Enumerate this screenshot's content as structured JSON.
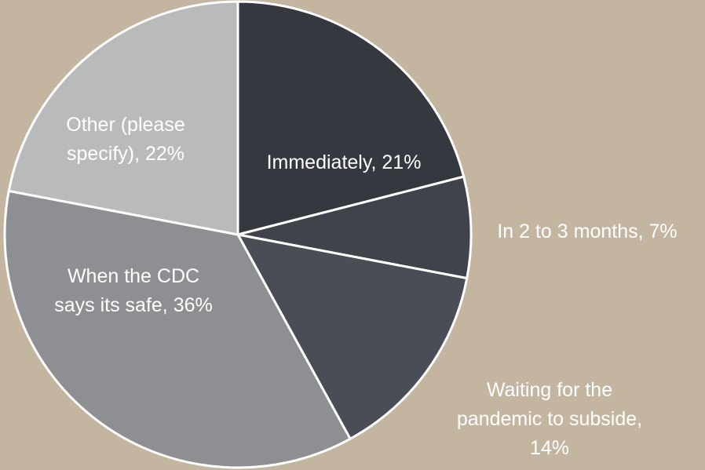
{
  "chart_data": {
    "type": "pie",
    "values": [
      21,
      7,
      14,
      36,
      22
    ],
    "value_labels": [
      [
        "Immediately, 21%"
      ],
      [
        "In 2 to 3 months, 7%"
      ],
      [
        "Waiting for the",
        "pandemic to subside,",
        "14%"
      ],
      [
        "When the CDC",
        "says its safe, 36%"
      ],
      [
        "Other (please",
        "specify), 22%"
      ]
    ],
    "colors": [
      "#363840",
      "#40434b",
      "#4a4d55",
      "#8e8f93",
      "#b9babc"
    ]
  }
}
